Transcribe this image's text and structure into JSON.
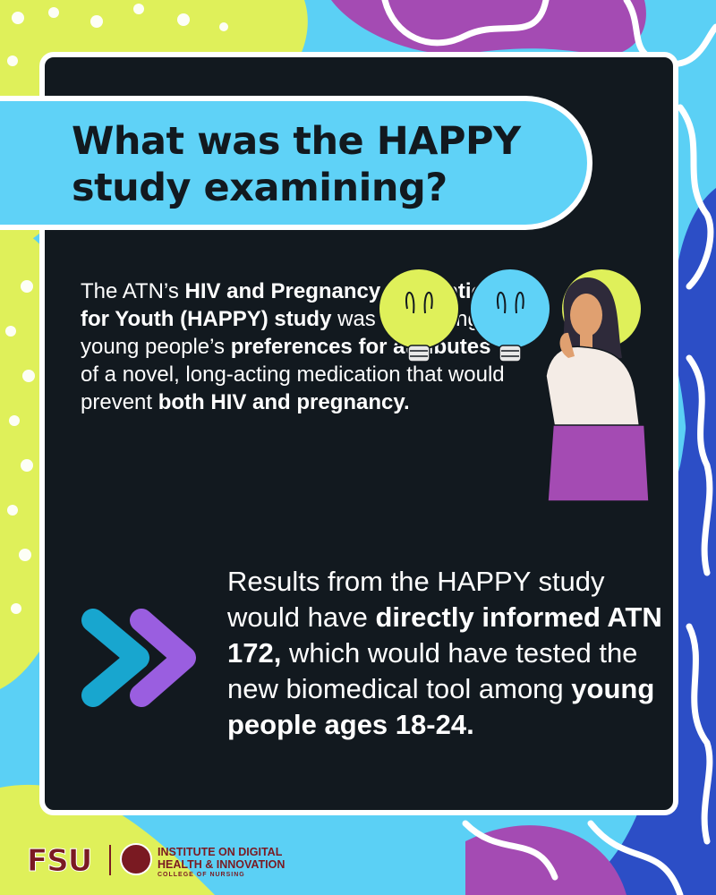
{
  "colors": {
    "background": "#5bd0f5",
    "card": "#12191f",
    "title_pill": "#5fd2f7",
    "yellow": "#dff05a",
    "purple": "#a44bb3",
    "navy": "#2c4ec6",
    "accent_cyan": "#18a6cf",
    "accent_violet": "#9a5ee0",
    "fsu_garnet": "#7a1a22"
  },
  "title": "What was the HAPPY study examining?",
  "body1": {
    "t1": "The ATN’s ",
    "b1": "HIV and Pregnancy Prevention for Youth (HAPPY) study",
    "t2": " was examining young people’s ",
    "b2": "preferences for attributes",
    "t3": " of a novel, long-acting medication that would prevent ",
    "b3": "both HIV and pregnancy."
  },
  "body2": {
    "t1": "Results from the HAPPY study would have ",
    "b1": "directly informed ATN 172,",
    "t2": " which would have tested the new biomedical tool among ",
    "b2": "young people ages 18-24."
  },
  "illustration": {
    "icons": [
      "lightbulb-icon",
      "lightbulb-icon",
      "lightbulb-icon",
      "thinking-woman"
    ]
  },
  "arrows_icon": "double-chevron-right-icon",
  "footer": {
    "fsu": "FSU",
    "inst_line1": "INSTITUTE ON DIGITAL",
    "inst_line2": "HEALTH & INNOVATION",
    "inst_line3": "COLLEGE OF NURSING"
  }
}
